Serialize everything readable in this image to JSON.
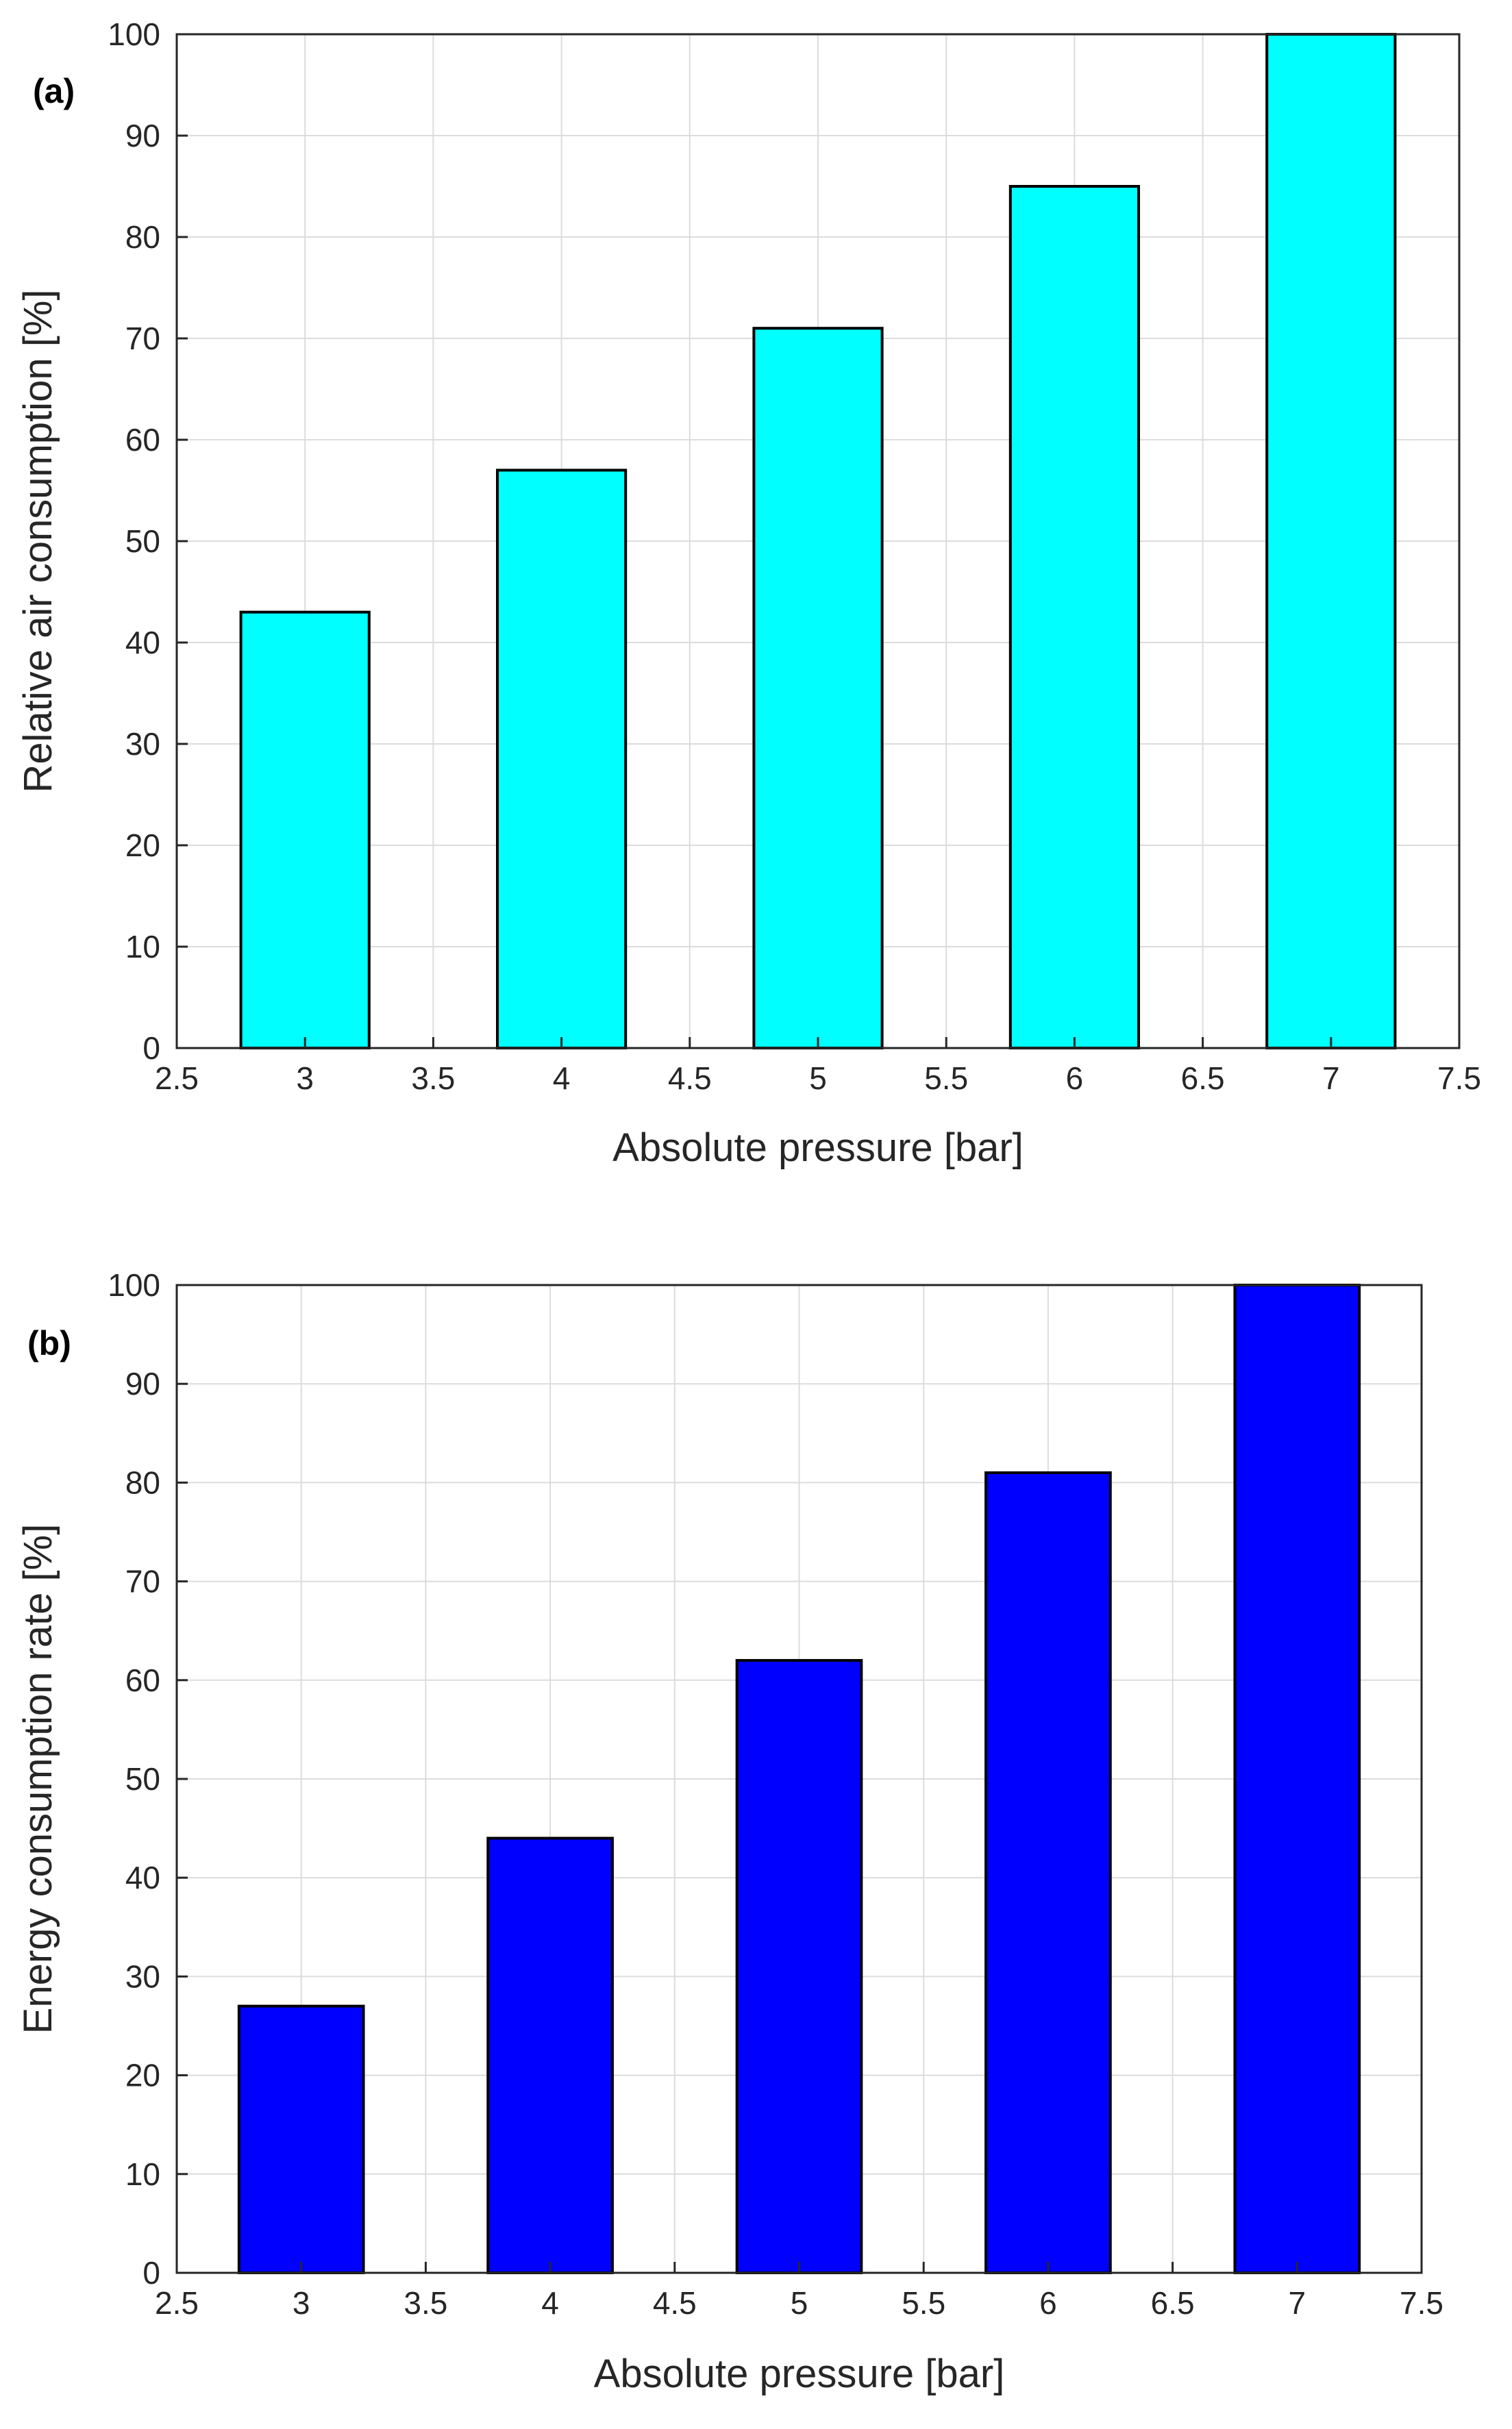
{
  "chart_data": [
    {
      "type": "bar",
      "panel_label": "(a)",
      "x": [
        3,
        4,
        5,
        6,
        7
      ],
      "values": [
        43,
        57,
        71,
        85,
        100
      ],
      "xlabel": "Absolute pressure [bar]",
      "ylabel": "Relative air consumption [%]",
      "xlim": [
        2.5,
        7.5
      ],
      "ylim": [
        0,
        100
      ],
      "xticks": [
        "2.5",
        "3",
        "3.5",
        "4",
        "4.5",
        "5",
        "5.5",
        "6",
        "6.5",
        "7",
        "7.5"
      ],
      "yticks": [
        "0",
        "10",
        "20",
        "30",
        "40",
        "50",
        "60",
        "70",
        "80",
        "90",
        "100"
      ],
      "bar_width": 0.5,
      "bar_color": "#00ffff",
      "grid": true
    },
    {
      "type": "bar",
      "panel_label": "(b)",
      "x": [
        3,
        4,
        5,
        6,
        7
      ],
      "values": [
        27,
        44,
        62,
        81,
        100
      ],
      "xlabel": "Absolute pressure [bar]",
      "ylabel": "Energy consumption rate [%]",
      "xlim": [
        2.5,
        7.5
      ],
      "ylim": [
        0,
        100
      ],
      "xticks": [
        "2.5",
        "3",
        "3.5",
        "4",
        "4.5",
        "5",
        "5.5",
        "6",
        "6.5",
        "7",
        "7.5"
      ],
      "yticks": [
        "0",
        "10",
        "20",
        "30",
        "40",
        "50",
        "60",
        "70",
        "80",
        "90",
        "100"
      ],
      "bar_width": 0.5,
      "bar_color": "#0000ff",
      "grid": true
    }
  ]
}
